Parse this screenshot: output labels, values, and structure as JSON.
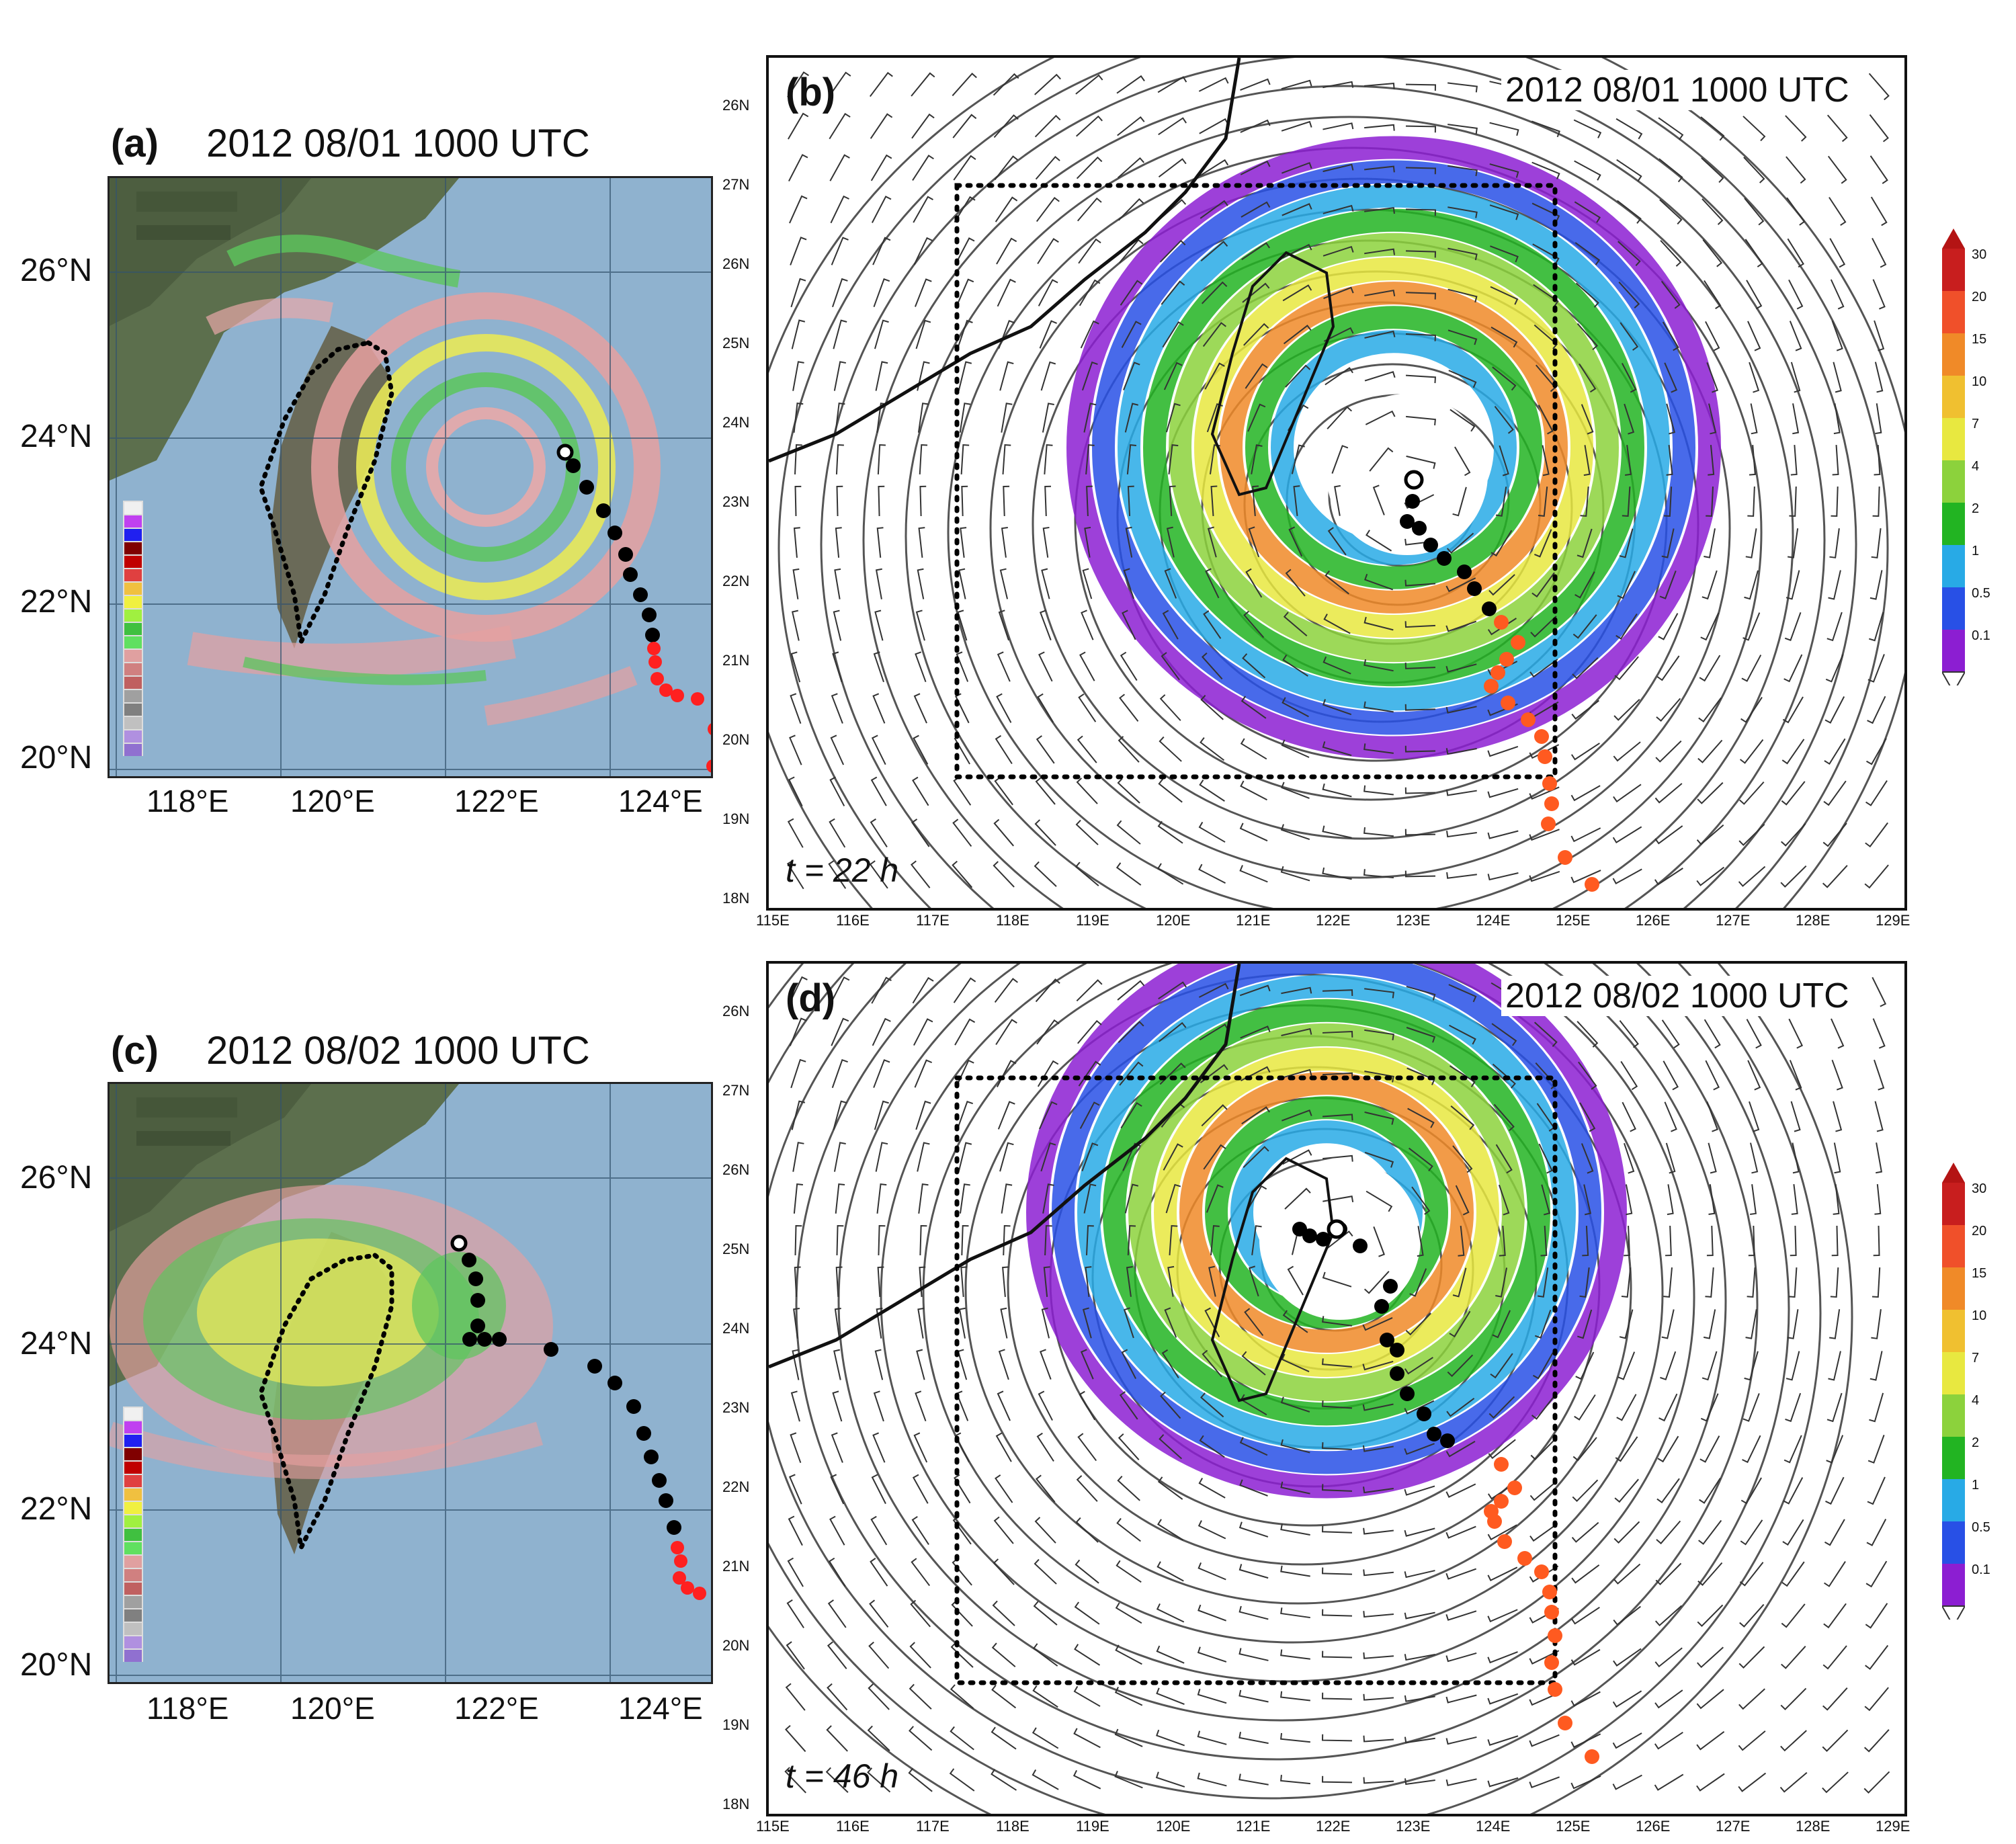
{
  "panels": {
    "a": {
      "tag": "(a)",
      "time": "2012 08/01 1000 UTC"
    },
    "b": {
      "tag": "(b)",
      "time": "2012 08/01 1000 UTC",
      "forecast": "t = 22 h"
    },
    "c": {
      "tag": "(c)",
      "time": "2012 08/02 1000 UTC"
    },
    "d": {
      "tag": "(d)",
      "time": "2012 08/02 1000 UTC",
      "forecast": "t = 46 h"
    }
  },
  "radar_axes": {
    "lat_labels": [
      "26°N",
      "24°N",
      "22°N",
      "20°N"
    ],
    "lon_labels": [
      "118°E",
      "120°E",
      "122°E",
      "124°E"
    ]
  },
  "model_axes": {
    "lat_labels": [
      "26N",
      "27N",
      "26N",
      "25N",
      "24N",
      "23N",
      "22N",
      "21N",
      "20N",
      "19N",
      "18N"
    ],
    "lon_labels": [
      "115E",
      "116E",
      "117E",
      "118E",
      "119E",
      "120E",
      "121E",
      "122E",
      "123E",
      "124E",
      "125E",
      "126E",
      "127E",
      "128E",
      "129E"
    ]
  },
  "colorbar": {
    "labels": [
      "30",
      "20",
      "15",
      "10",
      "7",
      "4",
      "2",
      "1",
      "0.5",
      "0.1"
    ],
    "colors": [
      "#c81e1e",
      "#f0502a",
      "#f08a28",
      "#f0c030",
      "#e8e840",
      "#8cd23c",
      "#22b422",
      "#28aae6",
      "#2850e6",
      "#8c1ed2"
    ]
  },
  "radar_legend_colors": [
    "#f0f0f0",
    "#c040f0",
    "#2020f0",
    "#800000",
    "#c00000",
    "#e04040",
    "#f0c040",
    "#f0f040",
    "#a0f040",
    "#40c040",
    "#60e060",
    "#e0a0a0",
    "#d08080",
    "#c06060",
    "#a0a0a0",
    "#808080",
    "#c0c0c0",
    "#b090e0",
    "#9070d0"
  ],
  "track_colors": {
    "observed": "#000000",
    "forecast": "#ff3010"
  }
}
